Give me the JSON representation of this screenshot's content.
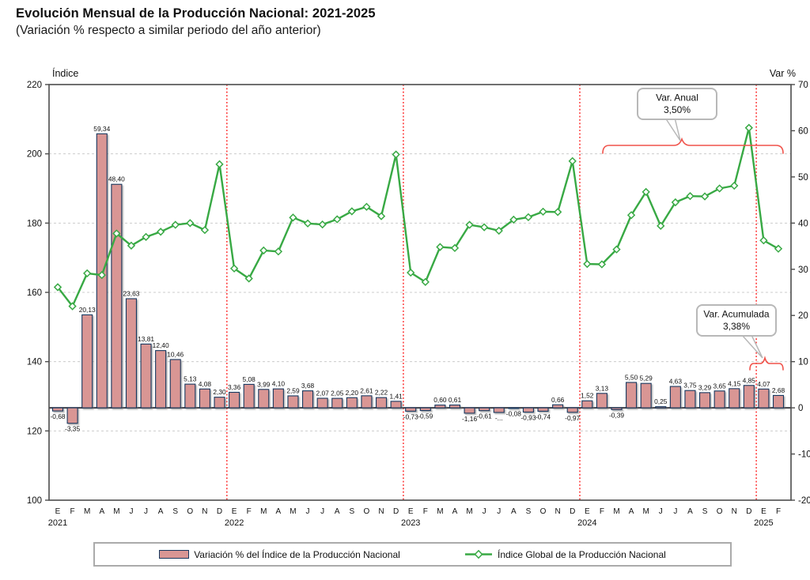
{
  "title": "Evolución Mensual de la Producción Nacional: 2021-2025",
  "subtitle": "(Variación % respecto a similar periodo del año anterior)",
  "colors": {
    "bar_fill": "#D99694",
    "bar_border": "#17375E",
    "line_green": "#38A944",
    "marker_fill": "#FFFFFF",
    "separator_red": "#FE3333",
    "annotation_red": "#F0524A",
    "grid_gray": "#CCCCCC",
    "frame_gray": "#4D4D4D",
    "zero_line": "#3F3F46",
    "callout_border": "#B8B8B8",
    "text": "#111111"
  },
  "annotations": {
    "var_anual": {
      "line1": "Var. Anual",
      "line2": "3,50%"
    },
    "var_acumulada": {
      "line1": "Var. Acumulada",
      "line2": "3,38%"
    }
  },
  "chart_data": {
    "type": "combo-bar-line",
    "title": "Evolución Mensual de la Producción Nacional: 2021-2025",
    "subtitle": "(Variación % respecto a similar periodo del año anterior)",
    "month_letters": [
      "E",
      "F",
      "M",
      "A",
      "M",
      "J",
      "J",
      "A",
      "S",
      "O",
      "N",
      "D"
    ],
    "years": [
      {
        "year": "2021",
        "months": 12
      },
      {
        "year": "2022",
        "months": 12
      },
      {
        "year": "2023",
        "months": 12
      },
      {
        "year": "2024",
        "months": 12
      },
      {
        "year": "2025",
        "months": 2
      }
    ],
    "left_axis": {
      "title": "Índice",
      "min": 100,
      "max": 220,
      "ticks": [
        220,
        200,
        180,
        160,
        140,
        120,
        100
      ]
    },
    "right_axis": {
      "title": "Var %",
      "min": -20,
      "max": 70,
      "ticks": [
        70,
        60,
        50,
        40,
        30,
        20,
        10,
        0,
        -10,
        -20
      ]
    },
    "gridlines_at": [
      200,
      180,
      160,
      140,
      120
    ],
    "year_separator_after_index": [
      11,
      23,
      35,
      47
    ],
    "bar_series": {
      "name": "Variación % del Índice de la Producción Nacional",
      "axis": "right",
      "values": [
        -0.68,
        -3.35,
        20.13,
        59.34,
        48.4,
        23.63,
        13.81,
        12.4,
        10.46,
        5.13,
        4.08,
        2.3,
        3.36,
        5.08,
        3.99,
        4.1,
        2.59,
        3.68,
        2.07,
        2.05,
        2.2,
        2.61,
        2.22,
        1.41,
        -0.73,
        -0.59,
        0.6,
        0.61,
        -1.16,
        -0.61,
        -1.0,
        -0.08,
        -0.93,
        -0.74,
        0.66,
        -0.97,
        1.52,
        3.13,
        -0.39,
        5.5,
        5.29,
        0.25,
        4.63,
        3.75,
        3.29,
        3.65,
        4.15,
        4.85,
        4.07,
        2.68
      ],
      "labels": [
        "-0,68",
        "-3,35",
        "20,13",
        "59,34",
        "48,40",
        "23,63",
        "13,81",
        "12,40",
        "10,46",
        "5,13",
        "4,08",
        "2,30",
        "3,36",
        "5,08",
        "3,99",
        "4,10",
        "2,59",
        "3,68",
        "2,07",
        "2,05",
        "2,20",
        "2,61",
        "2,22",
        "1,41",
        "-0,73",
        "-0,59",
        "0,60",
        "0,61",
        "-1,16",
        "-0,61",
        "-...",
        "-0,08",
        "-0,93",
        "-0,74",
        "0,66",
        "-0,97",
        "1,52",
        "3,13",
        "-0,39",
        "5,50",
        "5,29",
        "0,25",
        "4,63",
        "3,75",
        "3,29",
        "3,65",
        "4,15",
        "4,85",
        "4,07",
        "2,68"
      ]
    },
    "line_series": {
      "name": "Índice Global de la Producción Nacional",
      "axis": "left",
      "values": [
        161.5,
        156.0,
        165.5,
        165.0,
        177.0,
        173.5,
        176.0,
        177.5,
        179.5,
        180.0,
        178.0,
        197.0,
        166.9,
        164.0,
        172.1,
        171.8,
        181.6,
        179.9,
        179.6,
        181.1,
        183.4,
        184.7,
        182.0,
        199.8,
        165.7,
        163.0,
        173.1,
        172.8,
        179.5,
        178.8,
        177.8,
        181.0,
        181.7,
        183.3,
        183.2,
        197.9,
        168.2,
        168.1,
        172.4,
        182.3,
        189.0,
        179.2,
        186.0,
        187.8,
        187.7,
        190.0,
        190.8,
        207.5,
        175.0,
        172.6
      ]
    }
  }
}
